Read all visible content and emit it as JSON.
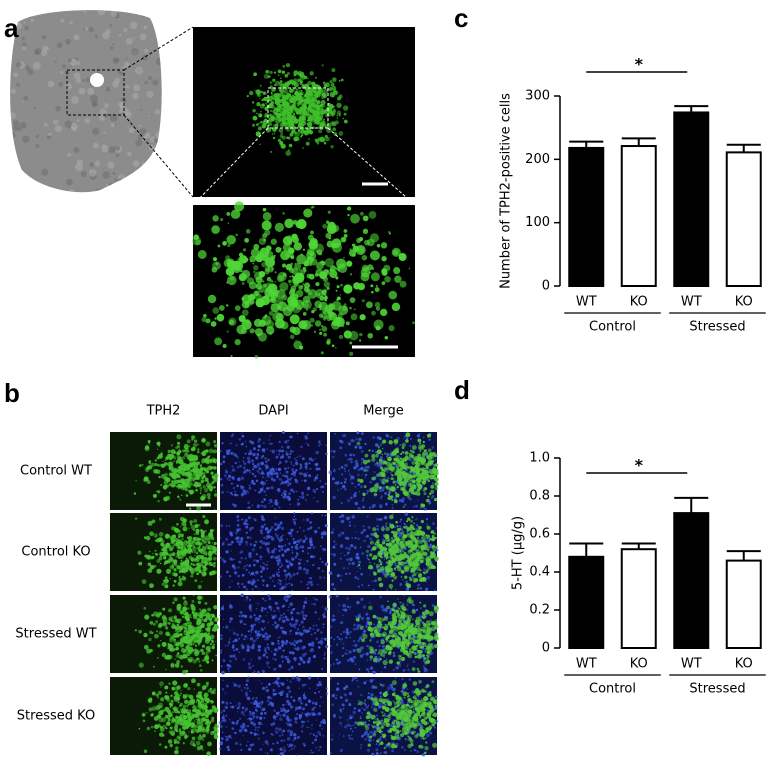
{
  "panel_labels": [
    "a",
    "b",
    "c",
    "d"
  ],
  "panel_b": {
    "columns": [
      "TPH2",
      "DAPI",
      "Merge"
    ],
    "rows": [
      "Control WT",
      "Control KO",
      "Stressed WT",
      "Stressed KO"
    ]
  },
  "chart_data": [
    {
      "type": "bar",
      "ylabel": "Number of TPH2-positive cells",
      "categories": [
        "WT",
        "KO",
        "WT",
        "KO"
      ],
      "groups": [
        "Control",
        "Stressed"
      ],
      "values": [
        218,
        221,
        274,
        211
      ],
      "errors": [
        10,
        12,
        10,
        12
      ],
      "colors": [
        "#000000",
        "#ffffff",
        "#000000",
        "#ffffff"
      ],
      "ylim": [
        0,
        300
      ],
      "yticks": [
        0,
        100,
        200,
        300
      ],
      "annotation": "*"
    },
    {
      "type": "bar",
      "ylabel": "5-HT (µg/g)",
      "categories": [
        "WT",
        "KO",
        "WT",
        "KO"
      ],
      "groups": [
        "Control",
        "Stressed"
      ],
      "values": [
        0.48,
        0.52,
        0.71,
        0.46
      ],
      "errors": [
        0.07,
        0.03,
        0.08,
        0.05
      ],
      "colors": [
        "#000000",
        "#ffffff",
        "#000000",
        "#ffffff"
      ],
      "ylim": [
        0,
        1
      ],
      "yticks": [
        0,
        0.2,
        0.4,
        0.6,
        0.8,
        {
          "value": 1,
          "label": "1.0"
        }
      ],
      "annotation": "*"
    }
  ]
}
